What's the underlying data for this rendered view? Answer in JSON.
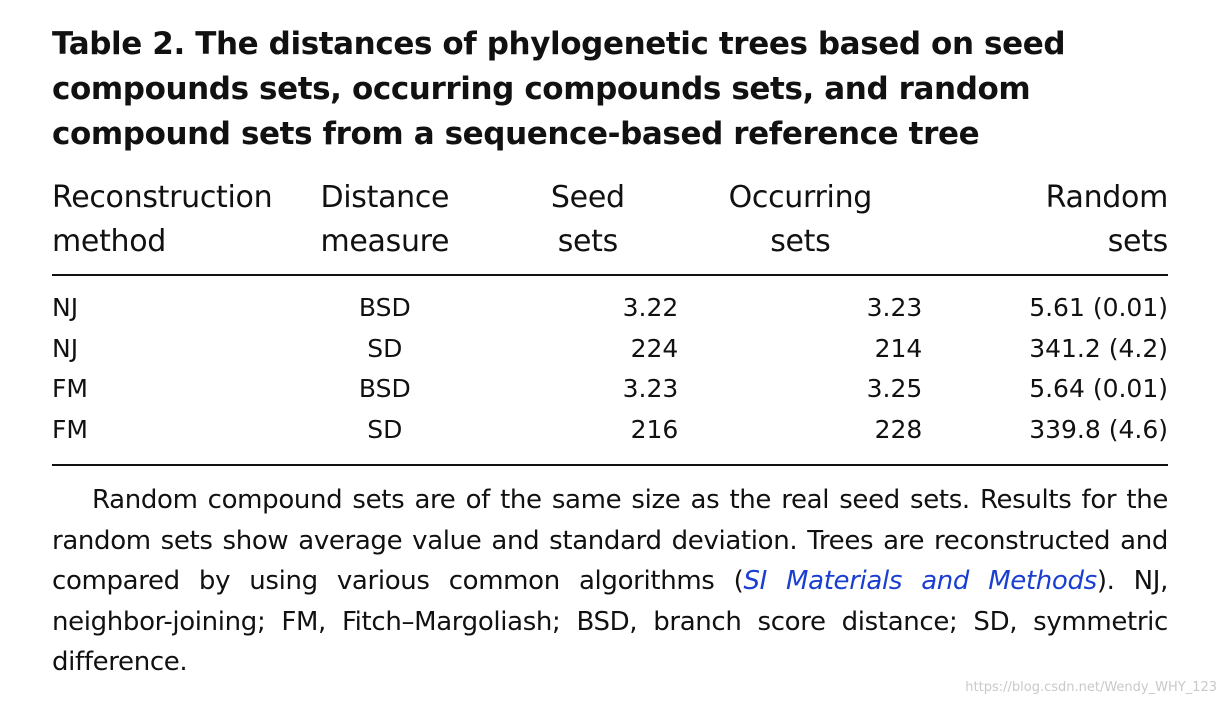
{
  "title": "Table 2. The distances of phylogenetic trees based on seed compounds sets, occurring compounds sets, and random compound sets from a sequence-based reference tree",
  "columns": [
    [
      "Reconstruction",
      "method"
    ],
    [
      "Distance",
      "measure"
    ],
    [
      "Seed",
      "sets"
    ],
    [
      "Occurring",
      "sets"
    ],
    [
      "Random",
      "sets"
    ]
  ],
  "rows": [
    [
      "NJ",
      "BSD",
      "3.22",
      "3.23",
      "5.61 (0.01)"
    ],
    [
      "NJ",
      "SD",
      "224",
      "214",
      "341.2 (4.2)"
    ],
    [
      "FM",
      "BSD",
      "3.23",
      "3.25",
      "5.64 (0.01)"
    ],
    [
      "FM",
      "SD",
      "216",
      "228",
      "339.8 (4.6)"
    ]
  ],
  "caption": {
    "before_link": "Random compound sets are of the same size as the real seed sets. Results for the random sets show average value and standard deviation. Trees are reconstructed and compared by using various common algorithms (",
    "link": "SI Materials and Methods",
    "after_link": "). NJ, neighbor-joining; FM, Fitch–Margoliash; BSD, branch score distance; SD, symmetric difference."
  },
  "watermark": "https://blog.csdn.net/Wendy_WHY_123",
  "colors": {
    "text": "#111111",
    "link": "#1a3fd0",
    "watermark": "#c9c9c9"
  }
}
